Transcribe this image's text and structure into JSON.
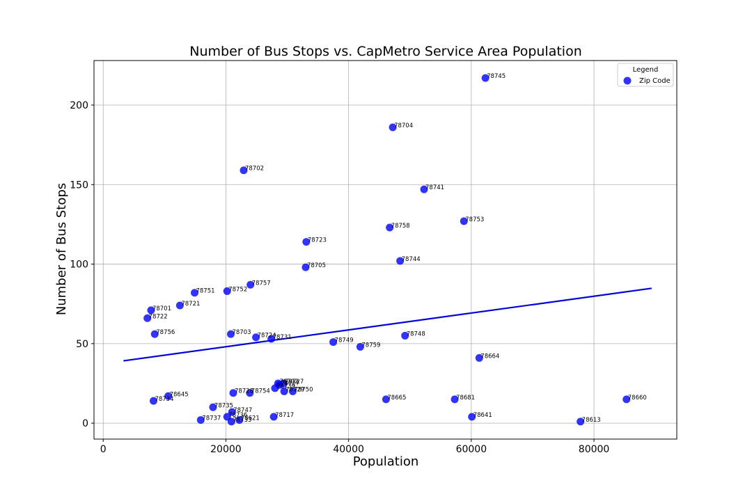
{
  "chart_data": {
    "type": "scatter",
    "title": "Number of Bus Stops vs. CapMetro Service Area Population",
    "xlabel": "Population",
    "ylabel": "Number of Bus Stops",
    "xlim": [
      -1500,
      93500
    ],
    "ylim": [
      -10,
      228
    ],
    "xticks": [
      0,
      20000,
      40000,
      60000,
      80000
    ],
    "yticks": [
      0,
      50,
      100,
      150,
      200
    ],
    "grid": true,
    "legend": {
      "title": "Legend",
      "entries": [
        "Zip Code"
      ],
      "placement": "top-right"
    },
    "colors": {
      "points": "#0000ff",
      "trendline": "#0000dd"
    },
    "series": [
      {
        "name": "Zip Code",
        "points": [
          {
            "label": "78745",
            "x": 62300,
            "y": 217
          },
          {
            "label": "78704",
            "x": 47200,
            "y": 186
          },
          {
            "label": "78702",
            "x": 22900,
            "y": 159
          },
          {
            "label": "78741",
            "x": 52300,
            "y": 147
          },
          {
            "label": "78753",
            "x": 58800,
            "y": 127
          },
          {
            "label": "78758",
            "x": 46700,
            "y": 123
          },
          {
            "label": "78723",
            "x": 33100,
            "y": 114
          },
          {
            "label": "78744",
            "x": 48400,
            "y": 102
          },
          {
            "label": "78705",
            "x": 33000,
            "y": 98
          },
          {
            "label": "78757",
            "x": 24000,
            "y": 87
          },
          {
            "label": "78751",
            "x": 14900,
            "y": 82
          },
          {
            "label": "78752",
            "x": 20200,
            "y": 83
          },
          {
            "label": "78721",
            "x": 12500,
            "y": 74
          },
          {
            "label": "78701",
            "x": 7800,
            "y": 71
          },
          {
            "label": "78722",
            "x": 7200,
            "y": 66
          },
          {
            "label": "78756",
            "x": 8400,
            "y": 56
          },
          {
            "label": "78703",
            "x": 20800,
            "y": 56
          },
          {
            "label": "78724",
            "x": 24900,
            "y": 54
          },
          {
            "label": "78731",
            "x": 27400,
            "y": 53
          },
          {
            "label": "78749",
            "x": 37500,
            "y": 51
          },
          {
            "label": "78759",
            "x": 41900,
            "y": 48
          },
          {
            "label": "78748",
            "x": 49200,
            "y": 55
          },
          {
            "label": "78664",
            "x": 61300,
            "y": 41
          },
          {
            "label": "78702",
            "x": 28500,
            "y": 25
          },
          {
            "label": "78727",
            "x": 29400,
            "y": 25
          },
          {
            "label": "78717",
            "x": 28700,
            "y": 24
          },
          {
            "label": "78739",
            "x": 28000,
            "y": 22
          },
          {
            "label": "78729",
            "x": 29500,
            "y": 20
          },
          {
            "label": "78750",
            "x": 30900,
            "y": 20
          },
          {
            "label": "78728",
            "x": 21200,
            "y": 19
          },
          {
            "label": "78754",
            "x": 23900,
            "y": 19
          },
          {
            "label": "78645",
            "x": 10600,
            "y": 17
          },
          {
            "label": "78734",
            "x": 8200,
            "y": 14
          },
          {
            "label": "78665",
            "x": 46100,
            "y": 15
          },
          {
            "label": "78681",
            "x": 57300,
            "y": 15
          },
          {
            "label": "78660",
            "x": 85300,
            "y": 15
          },
          {
            "label": "78735",
            "x": 17900,
            "y": 10
          },
          {
            "label": "78747",
            "x": 21000,
            "y": 7
          },
          {
            "label": "78736",
            "x": 20200,
            "y": 4
          },
          {
            "label": "78733",
            "x": 20900,
            "y": 1
          },
          {
            "label": "78621",
            "x": 22200,
            "y": 2
          },
          {
            "label": "78737",
            "x": 15900,
            "y": 2
          },
          {
            "label": "78717",
            "x": 27800,
            "y": 4
          },
          {
            "label": "78641",
            "x": 60100,
            "y": 4
          },
          {
            "label": "78613",
            "x": 77800,
            "y": 1
          }
        ]
      }
    ],
    "trendline": {
      "x": [
        3300,
        89400
      ],
      "y": [
        39.2,
        84.8
      ]
    }
  }
}
